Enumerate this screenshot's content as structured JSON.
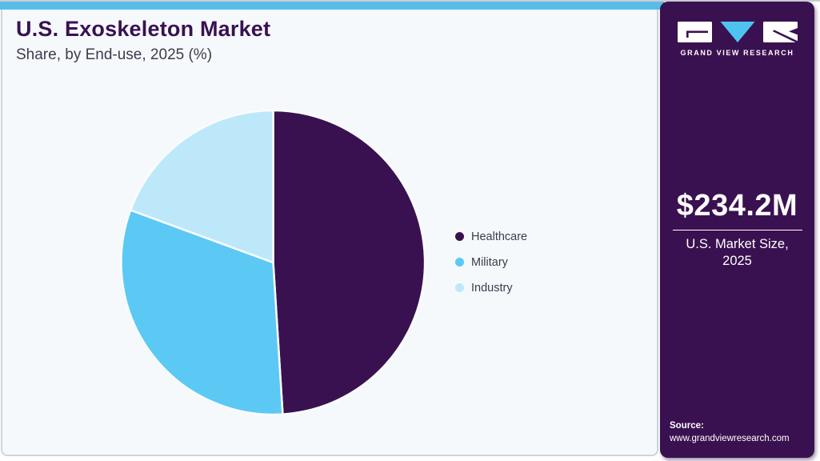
{
  "header": {
    "title": "U.S. Exoskeleton Market",
    "subtitle": "Share, by End-use, 2025 (%)"
  },
  "chart_data": {
    "type": "pie",
    "title": "U.S. Exoskeleton Market",
    "subtitle": "Share, by End-use, 2025 (%)",
    "unit": "%",
    "start_angle_deg": 0,
    "direction": "clockwise",
    "legend_position": "right",
    "slices": [
      {
        "label": "Healthcare",
        "value": 49.0,
        "color": "#3A1150"
      },
      {
        "label": "Military",
        "value": 31.6,
        "color": "#5BC9F4"
      },
      {
        "label": "Industry",
        "value": 19.4,
        "color": "#BCE8FA"
      }
    ]
  },
  "colors": {
    "accent_cyan": "#58BEE9",
    "brand_purple": "#3A1150",
    "card_background": "#F5F9FC",
    "title_text": "#3A1150",
    "logo_v_blue": "#4FC3F0"
  },
  "sidebar": {
    "logo": {
      "wordmark": "GRAND VIEW RESEARCH"
    },
    "market_size": {
      "value": "$234.2M",
      "label_line1": "U.S. Market Size,",
      "label_line2": "2025"
    },
    "source": {
      "label": "Source:",
      "url": "www.grandviewresearch.com"
    }
  }
}
